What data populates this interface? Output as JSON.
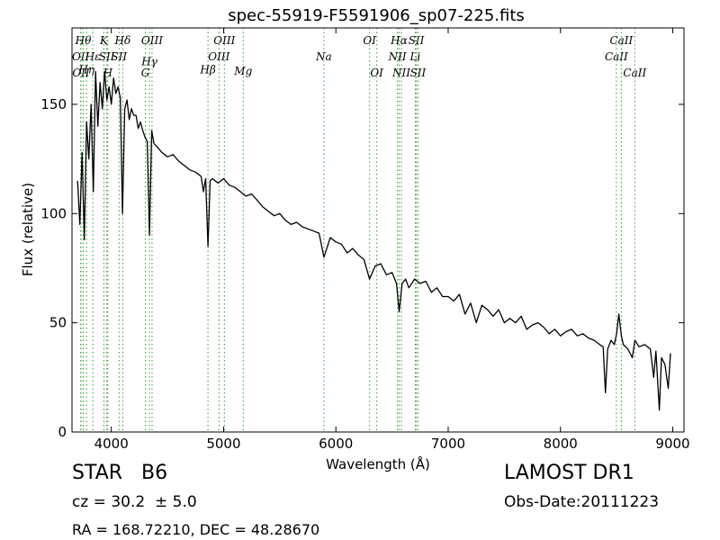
{
  "chart_data": {
    "type": "line",
    "title": "spec-55919-F5591906_sp07-225.fits",
    "xlabel": "Wavelength (Å)",
    "ylabel": "Flux (relative)",
    "xlim": [
      3650,
      9100
    ],
    "ylim": [
      0,
      185
    ],
    "xticks": [
      4000,
      5000,
      6000,
      7000,
      8000,
      9000
    ],
    "yticks": [
      0,
      50,
      100,
      150
    ],
    "line_color": "#000000",
    "marker_color": "#2ca02c",
    "series": [
      {
        "x": [
          3700,
          3720,
          3740,
          3760,
          3780,
          3800,
          3820,
          3840,
          3860,
          3880,
          3900,
          3920,
          3940,
          3960,
          3980,
          4000,
          4020,
          4040,
          4060,
          4080,
          4100,
          4120,
          4140,
          4160,
          4180,
          4200,
          4220,
          4240,
          4260,
          4280,
          4300,
          4320,
          4340,
          4360,
          4380,
          4400,
          4450,
          4500,
          4550,
          4600,
          4650,
          4700,
          4750,
          4800,
          4820,
          4840,
          4861,
          4880,
          4900,
          4950,
          5000,
          5050,
          5100,
          5150,
          5200,
          5250,
          5300,
          5350,
          5400,
          5450,
          5500,
          5550,
          5600,
          5650,
          5700,
          5750,
          5800,
          5850,
          5893,
          5950,
          6000,
          6050,
          6100,
          6150,
          6200,
          6250,
          6300,
          6350,
          6400,
          6450,
          6500,
          6540,
          6563,
          6590,
          6620,
          6650,
          6700,
          6750,
          6800,
          6850,
          6900,
          6950,
          7000,
          7050,
          7100,
          7150,
          7200,
          7250,
          7300,
          7350,
          7400,
          7450,
          7500,
          7550,
          7600,
          7650,
          7700,
          7750,
          7800,
          7850,
          7900,
          7950,
          8000,
          8050,
          8100,
          8150,
          8200,
          8250,
          8300,
          8350,
          8380,
          8400,
          8420,
          8450,
          8480,
          8500,
          8520,
          8542,
          8560,
          8600,
          8640,
          8662,
          8700,
          8750,
          8800,
          8830,
          8850,
          8880,
          8900,
          8930,
          8960,
          8980
        ],
        "values": [
          115,
          95,
          128,
          88,
          142,
          125,
          150,
          110,
          165,
          140,
          160,
          148,
          165,
          152,
          158,
          150,
          162,
          155,
          158,
          153,
          100,
          148,
          152,
          143,
          148,
          145,
          145,
          139,
          142,
          138,
          135,
          133,
          90,
          138,
          132,
          131,
          128,
          126,
          127,
          124,
          122,
          120,
          119,
          117,
          110,
          116,
          85,
          115,
          116,
          114,
          116,
          113,
          112,
          110,
          108,
          109,
          106,
          103,
          101,
          99,
          100,
          97,
          95,
          96,
          94,
          93,
          92,
          91,
          80,
          89,
          87,
          86,
          82,
          84,
          81,
          79,
          70,
          76,
          77,
          72,
          73,
          68,
          55,
          68,
          70,
          66,
          70,
          68,
          69,
          64,
          66,
          62,
          62,
          60,
          63,
          54,
          59,
          50,
          58,
          56,
          53,
          56,
          50,
          52,
          50,
          53,
          47,
          49,
          50,
          48,
          45,
          47,
          44,
          46,
          47,
          44,
          45,
          43,
          42,
          40,
          39,
          18,
          38,
          42,
          40,
          45,
          54,
          44,
          40,
          38,
          34,
          42,
          39,
          40,
          38,
          25,
          37,
          10,
          34,
          31,
          20,
          36
        ]
      }
    ],
    "lines": [
      {
        "w": 3727,
        "label": "OII",
        "row": 2
      },
      {
        "w": 3730,
        "label": "OII",
        "row": 3
      },
      {
        "w": 3750,
        "label": "Hθ",
        "row": 1
      },
      {
        "w": 3780,
        "label": "Hη",
        "row": 2.8
      },
      {
        "w": 3835,
        "label": "Hε",
        "row": 2
      },
      {
        "w": 3934,
        "label": "K",
        "row": 1
      },
      {
        "w": 3969,
        "label": "H",
        "row": 3
      },
      {
        "w": 3960,
        "label": "SII",
        "row": 2
      },
      {
        "w": 4069,
        "label": "SII",
        "row": 2
      },
      {
        "w": 4102,
        "label": "Hδ",
        "row": 1
      },
      {
        "w": 4304,
        "label": "G",
        "row": 3
      },
      {
        "w": 4340,
        "label": "Hγ",
        "row": 2.3
      },
      {
        "w": 4363,
        "label": "OIII",
        "row": 1
      },
      {
        "w": 4861,
        "label": "Hβ",
        "row": 2.8
      },
      {
        "w": 4959,
        "label": "OIII",
        "row": 2
      },
      {
        "w": 5007,
        "label": "OIII",
        "row": 1
      },
      {
        "w": 5175,
        "label": "Mg",
        "row": 2.9
      },
      {
        "w": 5893,
        "label": "Na",
        "row": 2
      },
      {
        "w": 6300,
        "label": "OI",
        "row": 1
      },
      {
        "w": 6364,
        "label": "OI",
        "row": 3
      },
      {
        "w": 6548,
        "label": "NII",
        "row": 2
      },
      {
        "w": 6563,
        "label": "Hα",
        "row": 1
      },
      {
        "w": 6583,
        "label": "NII",
        "row": 3
      },
      {
        "w": 6707,
        "label": "Li",
        "row": 2
      },
      {
        "w": 6716,
        "label": "SII",
        "row": 1
      },
      {
        "w": 6731,
        "label": "SII",
        "row": 3
      },
      {
        "w": 8498,
        "label": "CaII",
        "row": 2
      },
      {
        "w": 8542,
        "label": "CaII",
        "row": 1
      },
      {
        "w": 8662,
        "label": "CaII",
        "row": 3
      }
    ]
  },
  "footer": {
    "object_type": "STAR   B6",
    "survey": "LAMOST DR1",
    "redshift": "cz = 30.2  ± 5.0",
    "obs_date": "Obs-Date:20111223",
    "coords": "RA = 168.72210, DEC = 48.28670"
  }
}
